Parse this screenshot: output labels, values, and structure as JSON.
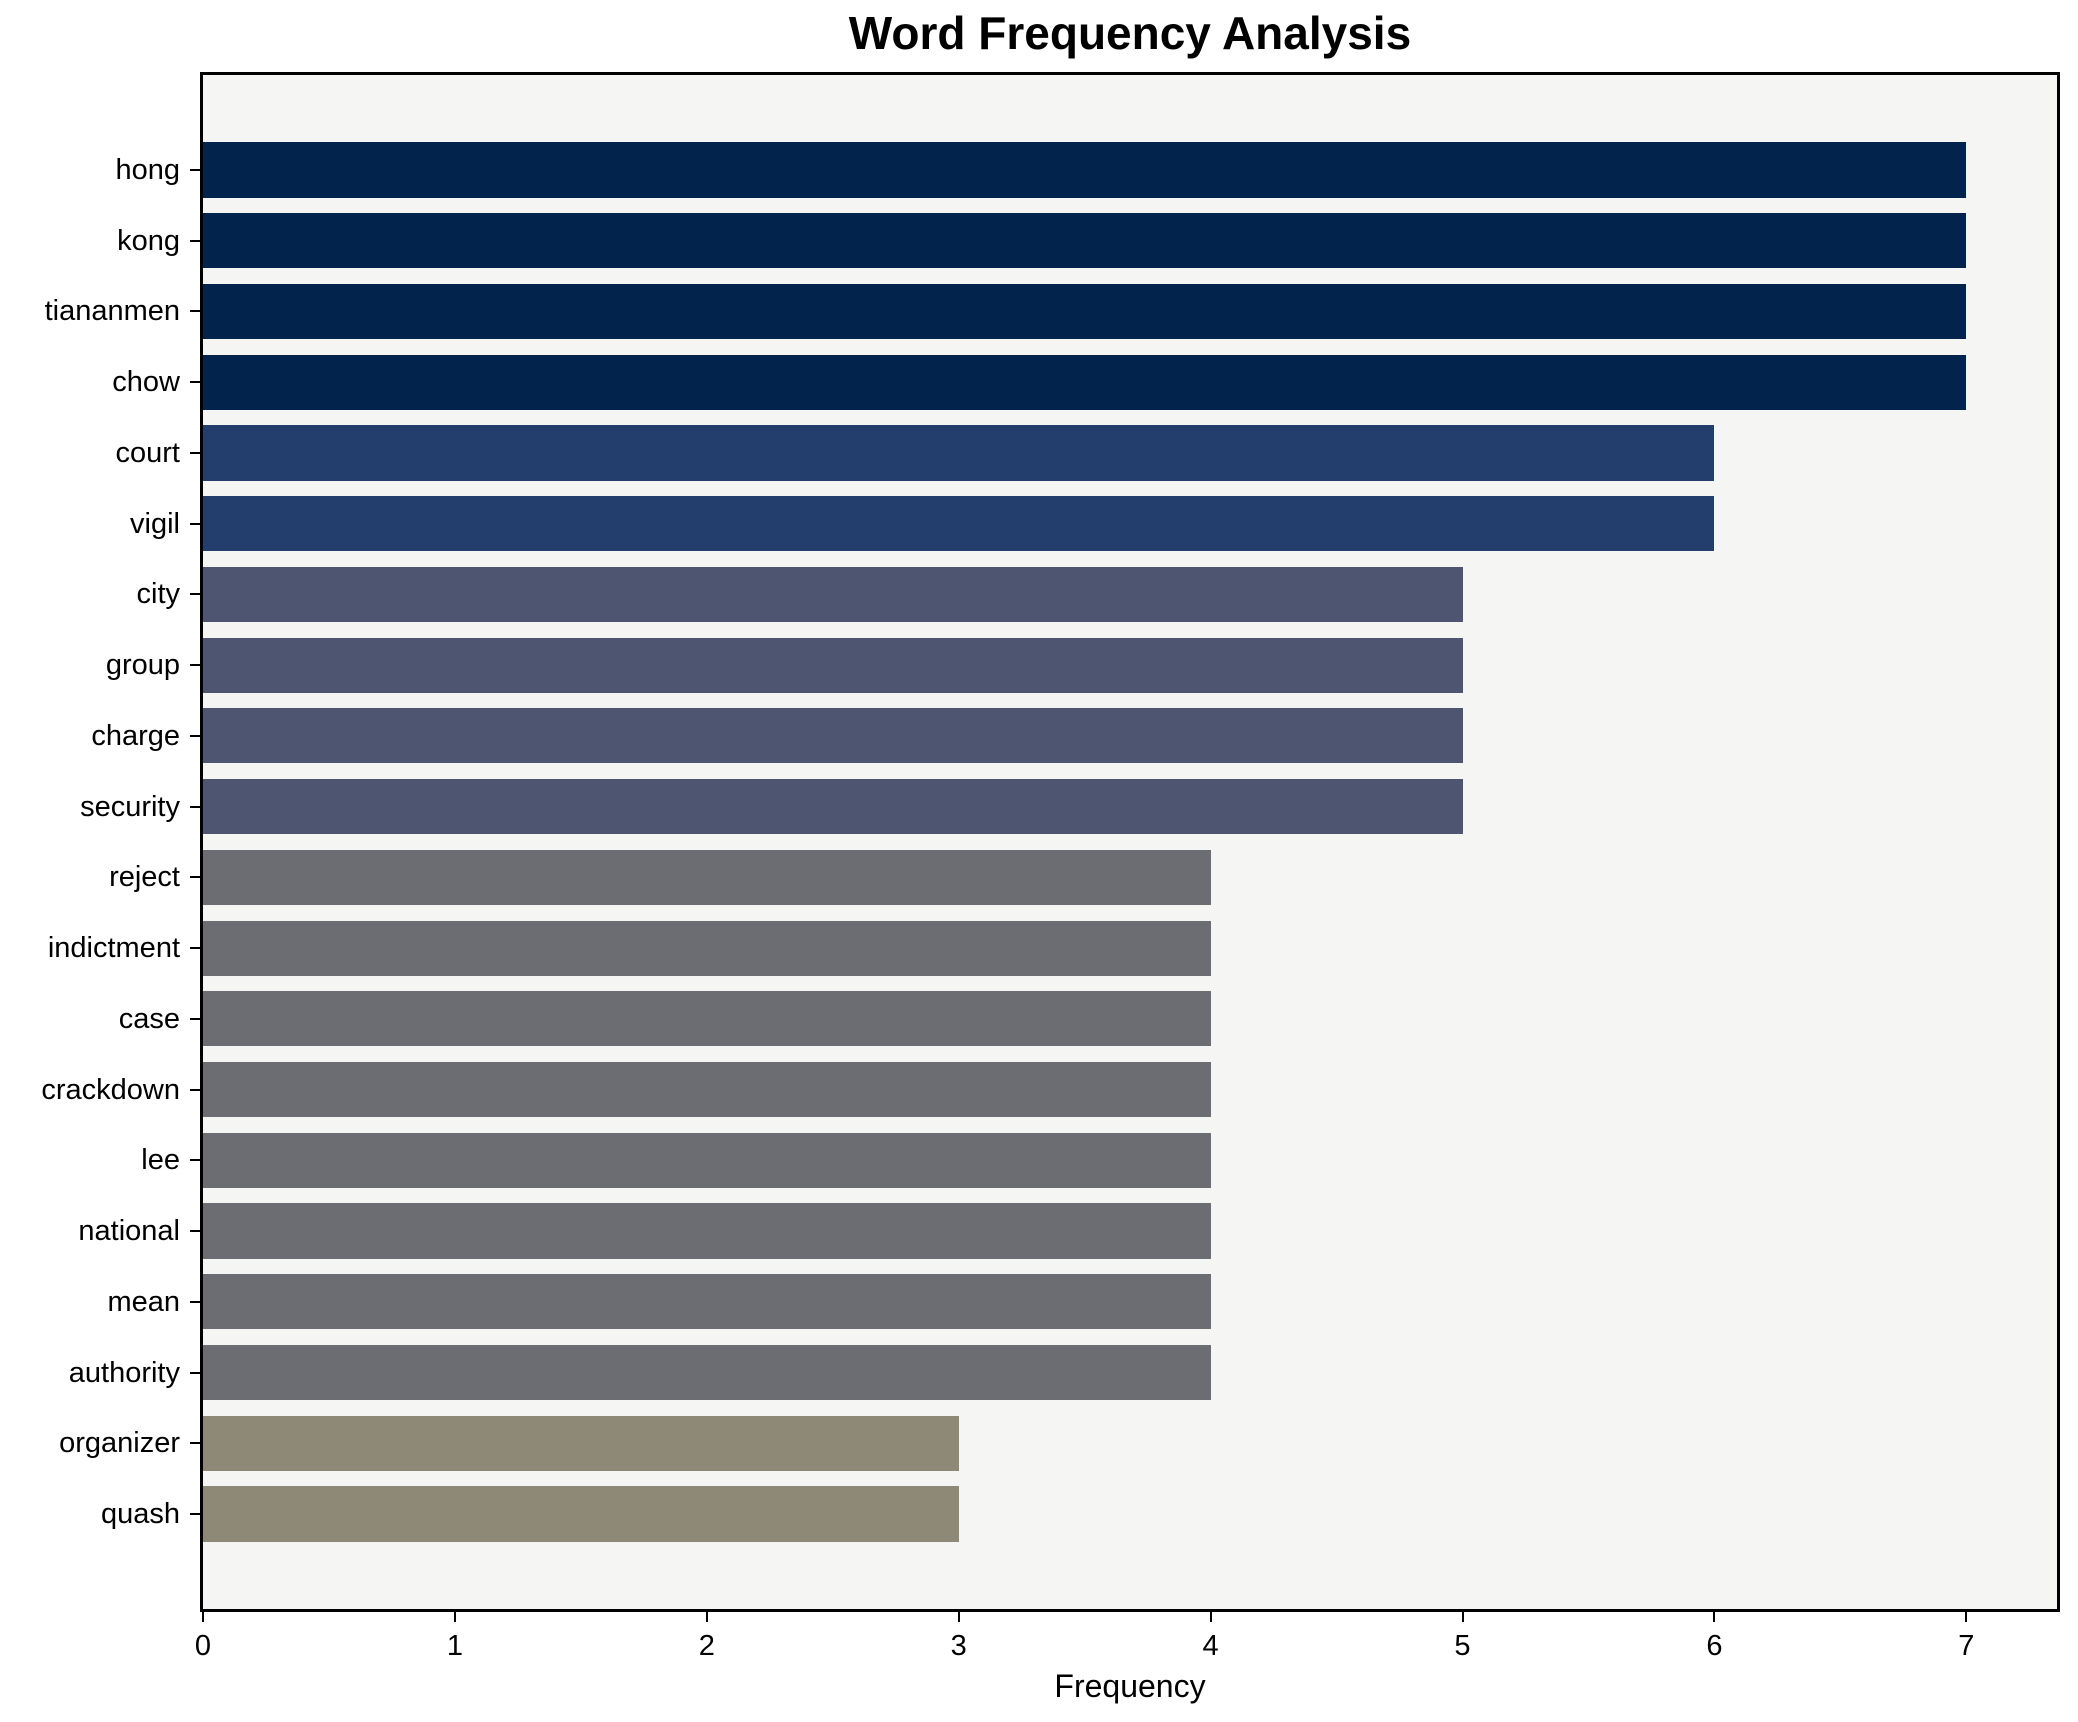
{
  "title": "Word Frequency Analysis",
  "chart_data": {
    "type": "bar",
    "orientation": "horizontal",
    "title": "Word Frequency Analysis",
    "xlabel": "Frequency",
    "ylabel": "",
    "categories": [
      "hong",
      "kong",
      "tiananmen",
      "chow",
      "court",
      "vigil",
      "city",
      "group",
      "charge",
      "security",
      "reject",
      "indictment",
      "case",
      "crackdown",
      "lee",
      "national",
      "mean",
      "authority",
      "organizer",
      "quash"
    ],
    "values": [
      7,
      7,
      7,
      7,
      6,
      6,
      5,
      5,
      5,
      5,
      4,
      4,
      4,
      4,
      4,
      4,
      4,
      4,
      3,
      3
    ],
    "x_ticks": [
      0,
      1,
      2,
      3,
      4,
      5,
      6,
      7
    ],
    "xlim": [
      0,
      7.36
    ],
    "grid": false,
    "legend_position": "none",
    "colors_by_value": {
      "7": "#02234c",
      "6": "#233d6c",
      "5": "#4d5571",
      "4": "#6c6d72",
      "3": "#8e8877"
    },
    "plot_background": "#f5f5f3",
    "figure_background": "#ffffff",
    "spine_color": "#000000",
    "text_color": "#000000"
  }
}
